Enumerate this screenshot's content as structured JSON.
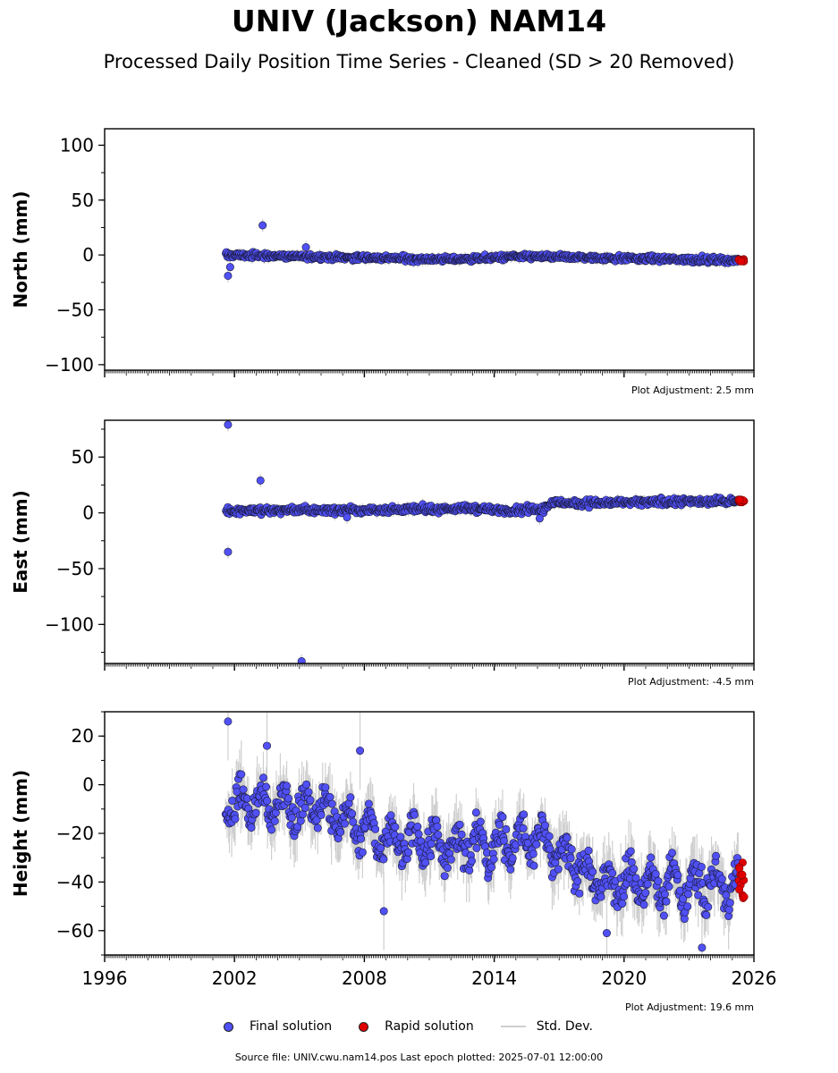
{
  "title": "UNIV (Jackson) NAM14",
  "subtitle": "Processed Daily Position Time Series - Cleaned (SD > 20 Removed)",
  "legend": {
    "final": {
      "label": "Final solution",
      "color": "#5050f5"
    },
    "rapid": {
      "label": "Rapid solution",
      "color": "#e00000"
    },
    "stddev": {
      "label": "Std. Dev.",
      "color": "#cfcfcf"
    }
  },
  "source_note": "Source file: UNIV.cwu.nam14.pos  Last epoch plotted: 2025-07-01 12:00:00",
  "chart_data": [
    {
      "type": "scatter",
      "panel": "north",
      "ylabel": "North (mm)",
      "ylim": [
        -105,
        115
      ],
      "yticks": [
        100,
        50,
        0,
        -50,
        -100
      ],
      "ytick_labels": [
        "100",
        "50",
        "0",
        "−50",
        "−100"
      ],
      "xlim": [
        1996,
        2026
      ],
      "adjustment_note": "Plot Adjustment: 2.5 mm",
      "trend_points": [
        [
          2001.6,
          0
        ],
        [
          2008,
          -2.5
        ],
        [
          2012,
          -4
        ],
        [
          2014.5,
          -2
        ],
        [
          2016,
          -1.5
        ],
        [
          2020,
          -3
        ],
        [
          2025.5,
          -5
        ]
      ],
      "noise": 1.8,
      "band": 3,
      "outliers": [
        [
          2001.7,
          -19
        ],
        [
          2003.3,
          27
        ],
        [
          2001.8,
          -11
        ],
        [
          2005.3,
          7
        ]
      ],
      "rapid": {
        "x_range": [
          2025.3,
          2025.55
        ],
        "y_range": [
          -6,
          -3
        ]
      }
    },
    {
      "type": "scatter",
      "panel": "east",
      "ylabel": "East (mm)",
      "ylim": [
        -135,
        83
      ],
      "yticks": [
        50,
        0,
        -50,
        -100
      ],
      "ytick_labels": [
        "50",
        "0",
        "−50",
        "−100"
      ],
      "xlim": [
        1996,
        2026
      ],
      "adjustment_note": "Plot Adjustment: -4.5 mm",
      "trend_points": [
        [
          2001.6,
          2
        ],
        [
          2008,
          2.5
        ],
        [
          2013,
          4
        ],
        [
          2014.5,
          2
        ],
        [
          2016.3,
          3
        ],
        [
          2016.6,
          9
        ],
        [
          2020,
          9
        ],
        [
          2025.5,
          11
        ]
      ],
      "noise": 2.2,
      "band": 3,
      "outliers": [
        [
          2001.7,
          79
        ],
        [
          2001.7,
          -35
        ],
        [
          2003.2,
          29
        ],
        [
          2005.1,
          -133
        ],
        [
          2007.2,
          -4
        ],
        [
          2016.1,
          -5
        ]
      ],
      "rapid": {
        "x_range": [
          2025.3,
          2025.55
        ],
        "y_range": [
          9,
          12
        ]
      }
    },
    {
      "type": "scatter",
      "panel": "height",
      "ylabel": "Height (mm)",
      "ylim": [
        -70,
        30
      ],
      "yticks": [
        20,
        0,
        -20,
        -40,
        -60
      ],
      "ytick_labels": [
        "20",
        "0",
        "−20",
        "−40",
        "−60"
      ],
      "xlim": [
        1996,
        2026
      ],
      "xticks": [
        1996,
        2002,
        2008,
        2014,
        2020,
        2026
      ],
      "xtick_labels": [
        "1996",
        "2002",
        "2008",
        "2014",
        "2020",
        "2026"
      ],
      "adjustment_note": "Plot Adjustment: 19.6 mm",
      "trend_points": [
        [
          2001.6,
          -8
        ],
        [
          2006,
          -10
        ],
        [
          2009,
          -22
        ],
        [
          2012,
          -25
        ],
        [
          2014,
          -25
        ],
        [
          2016,
          -22
        ],
        [
          2019,
          -40
        ],
        [
          2025.5,
          -42
        ]
      ],
      "noise": 5,
      "seasonal": 8,
      "band": 8,
      "outliers": [
        [
          2001.7,
          26
        ],
        [
          2003.5,
          16
        ],
        [
          2007.8,
          14
        ],
        [
          2008.9,
          -52
        ],
        [
          2023.6,
          -67
        ],
        [
          2019.2,
          -61
        ]
      ],
      "rapid": {
        "x_range": [
          2025.3,
          2025.55
        ],
        "y_range": [
          -47,
          -31
        ]
      }
    }
  ]
}
